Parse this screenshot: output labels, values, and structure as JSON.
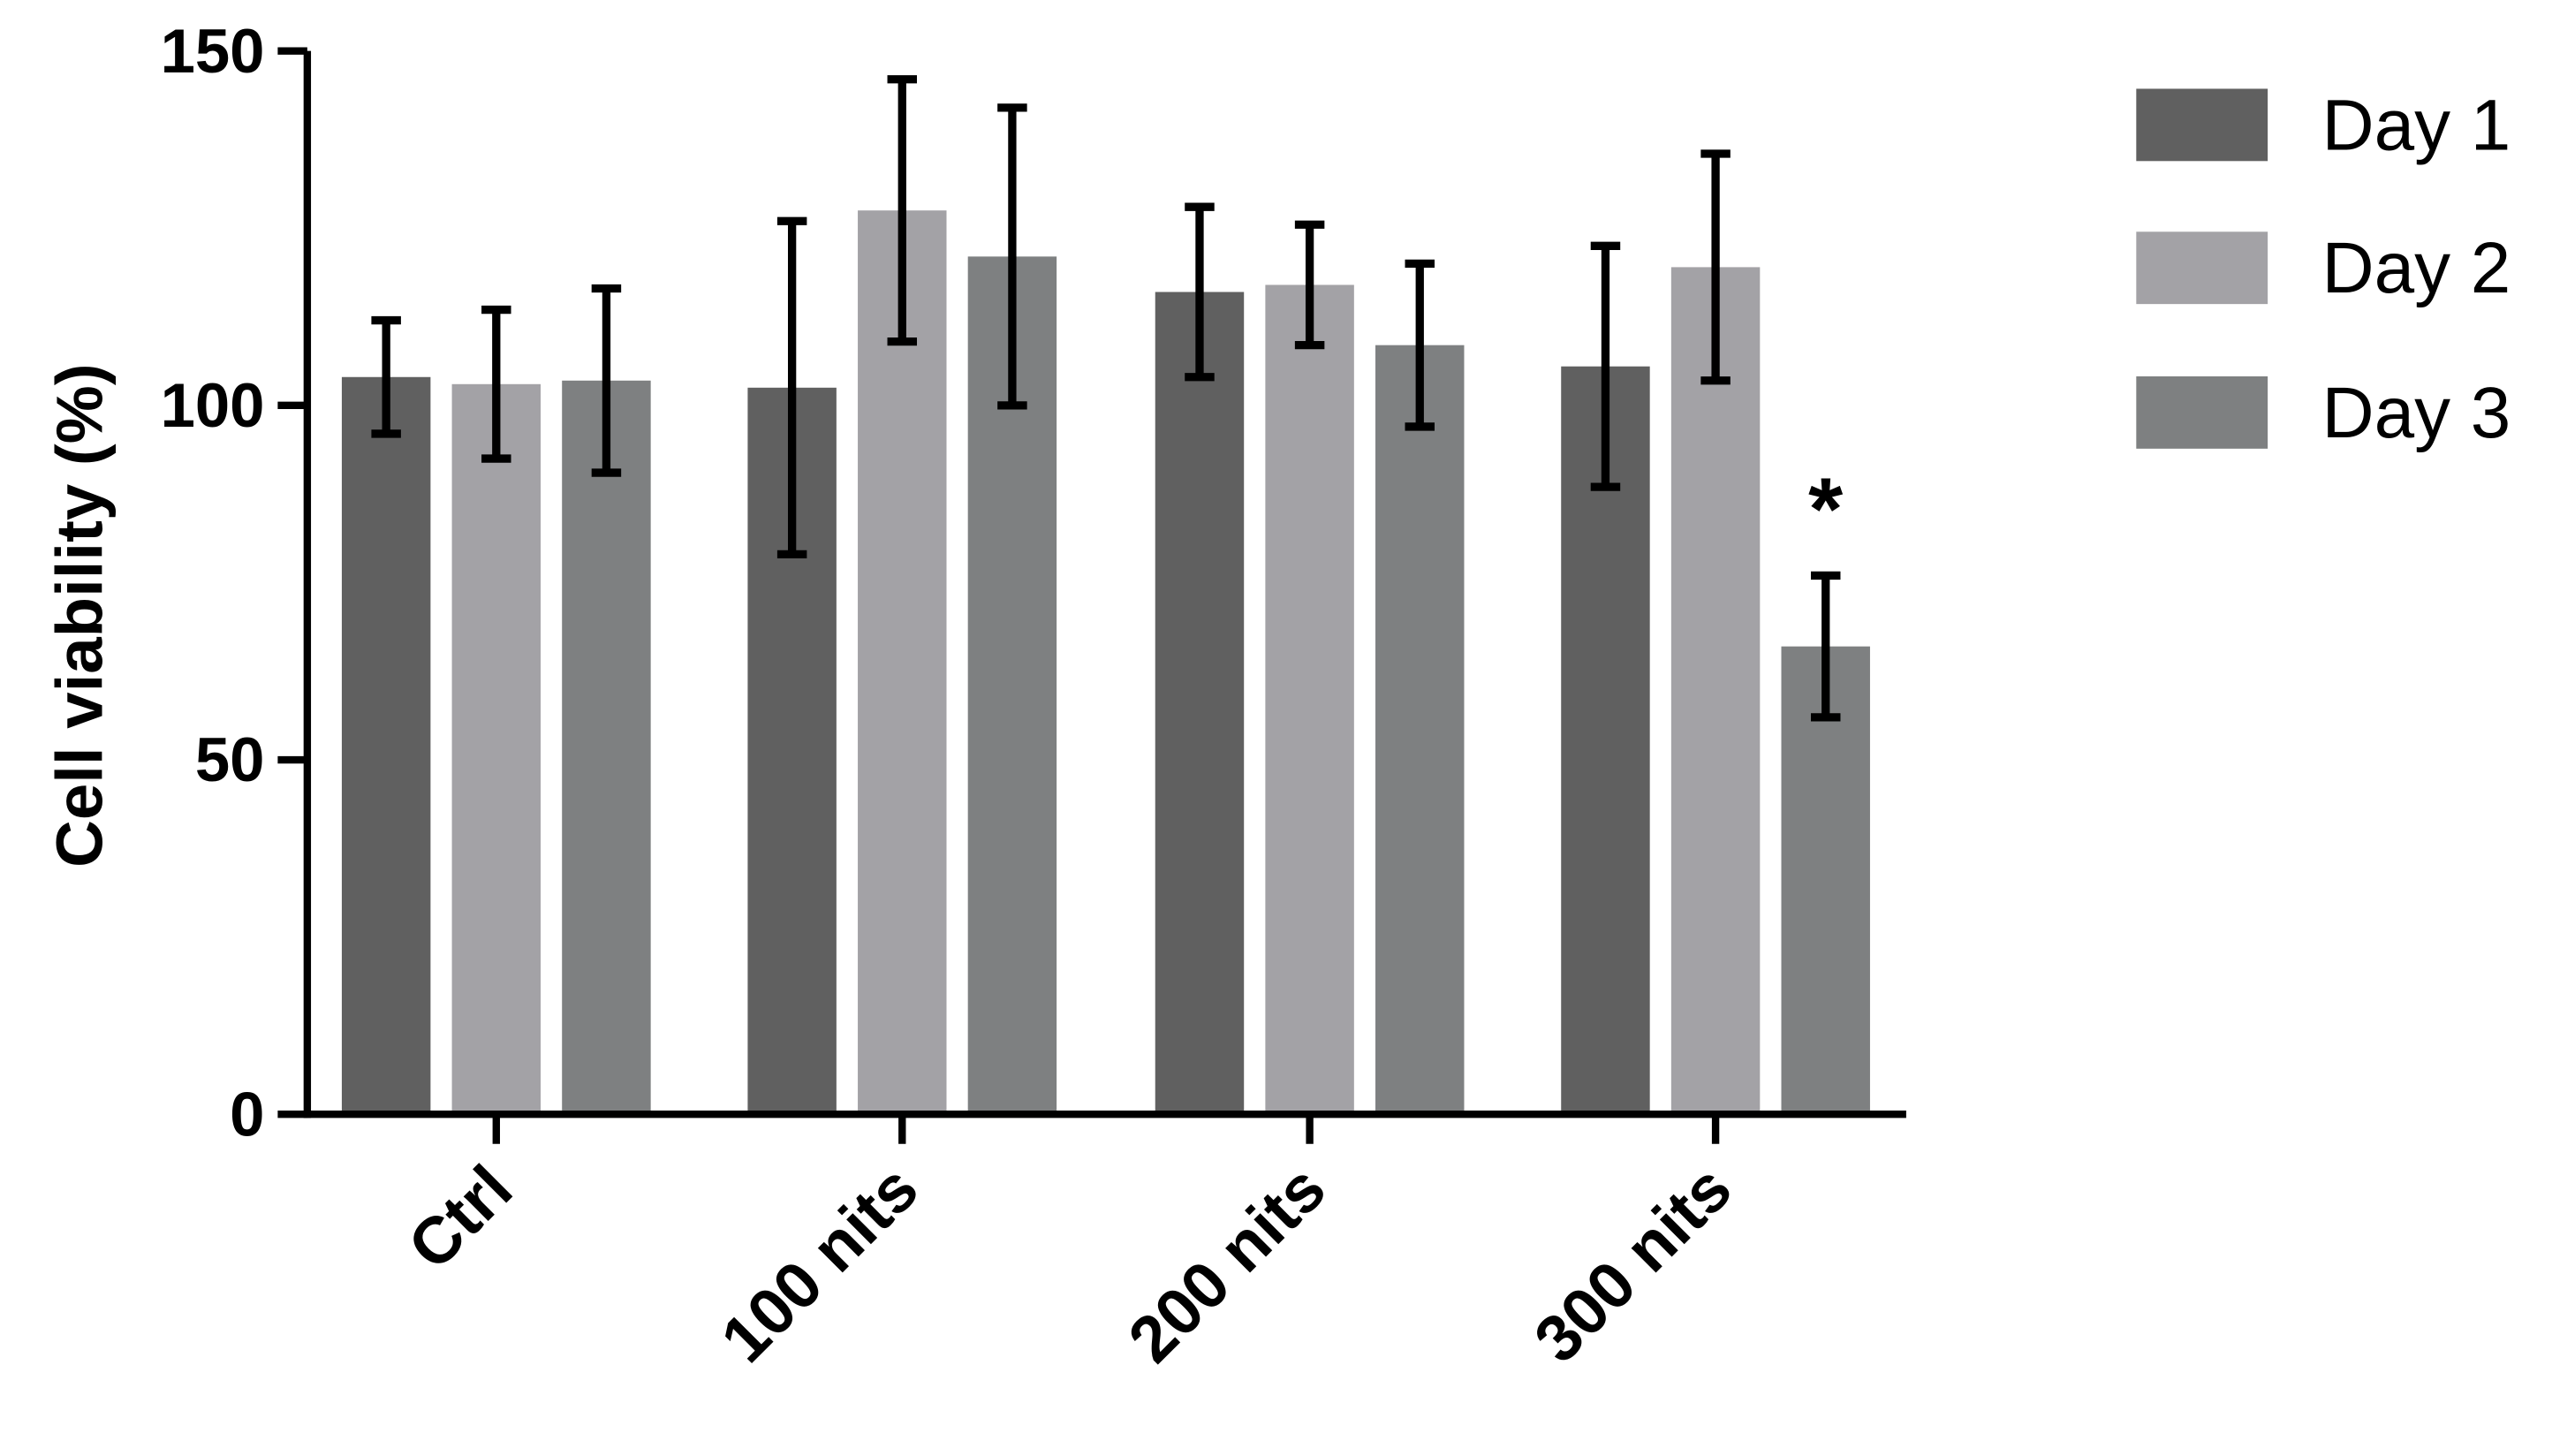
{
  "chart_data": {
    "type": "bar",
    "title": "",
    "xlabel": "",
    "ylabel": "Cell viability (%)",
    "ylim": [
      0,
      150
    ],
    "yticks": [
      "0",
      "50",
      "100",
      "150"
    ],
    "grid": false,
    "legend_position": "top-right",
    "categories": [
      "Ctrl",
      "100 nits",
      "200 nits",
      "300 nits"
    ],
    "series": [
      {
        "name": "Day 1",
        "color": "#606060",
        "values": [
          104,
          102.5,
          116,
          105.5
        ],
        "errors": [
          8,
          23.5,
          12,
          17
        ]
      },
      {
        "name": "Day 2",
        "color": "#a3a2a6",
        "values": [
          103,
          127.5,
          117,
          119.5
        ],
        "errors": [
          10.5,
          18.5,
          8.5,
          16
        ]
      },
      {
        "name": "Day 3",
        "color": "#7e8081",
        "values": [
          103.5,
          121,
          108.5,
          66
        ],
        "errors": [
          13,
          21,
          11.5,
          10
        ]
      }
    ],
    "annotations": [
      {
        "category": "300 nits",
        "series": "Day 3",
        "text": "*"
      }
    ]
  }
}
